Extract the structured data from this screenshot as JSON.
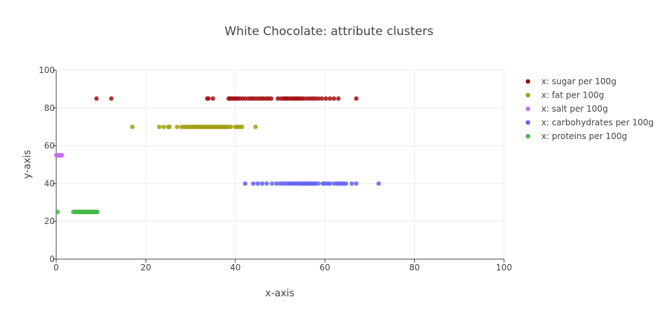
{
  "chart_data": {
    "type": "scatter",
    "title": "White Chocolate: attribute clusters",
    "xlabel": "x-axis",
    "ylabel": "y-axis",
    "xlim": [
      0,
      100
    ],
    "ylim": [
      0,
      100
    ],
    "x_ticks": [
      0,
      20,
      40,
      60,
      80,
      100
    ],
    "y_ticks": [
      0,
      20,
      40,
      60,
      80,
      100
    ],
    "grid": true,
    "legend_position": "top-right",
    "series": [
      {
        "name": "x: sugar per 100g",
        "color": "#a10f12",
        "y": 85,
        "x": [
          9,
          12.3,
          33.7,
          34,
          35,
          38.5,
          38.8,
          39.2,
          39.6,
          40.1,
          40.5,
          41,
          41.6,
          42.2,
          42.9,
          43.5,
          44,
          44.6,
          45.2,
          45.8,
          46.3,
          46.9,
          47.4,
          48,
          49.5,
          50.2,
          50.8,
          51.2,
          51.6,
          52.1,
          52.5,
          53,
          53.4,
          53.8,
          54.2,
          54.7,
          55.2,
          55.9,
          56.6,
          57.2,
          57.8,
          58.5,
          59.3,
          60.2,
          61.1,
          62,
          63,
          67
        ]
      },
      {
        "name": "x: fat per 100g",
        "color": "#a0a010",
        "y": 70,
        "x": [
          17,
          23,
          24,
          25,
          25.3,
          27,
          28,
          28.5,
          29,
          29.4,
          29.8,
          30.2,
          30.6,
          31,
          31.3,
          31.6,
          32,
          32.3,
          32.6,
          32.9,
          33.2,
          33.5,
          33.8,
          34.1,
          34.4,
          34.7,
          35,
          35.3,
          35.6,
          35.9,
          36.2,
          36.5,
          36.8,
          37.1,
          37.4,
          37.7,
          38,
          38.5,
          39,
          40,
          40.5,
          41,
          41.5,
          44.5
        ]
      },
      {
        "name": "x: salt per 100g",
        "color": "#c46ef0",
        "y": 55,
        "x": [
          0.05,
          0.1,
          0.15,
          0.2,
          0.25,
          0.3,
          0.35,
          0.4,
          0.5,
          0.6,
          0.7,
          0.8,
          0.9,
          1.0,
          1.1,
          1.3
        ]
      },
      {
        "name": "x: carbohydrates per 100g",
        "color": "#6161f0",
        "y": 40,
        "x": [
          42.2,
          44,
          45,
          46,
          47,
          48.2,
          49.2,
          50,
          50.6,
          51.2,
          51.8,
          52.3,
          52.8,
          53.3,
          53.8,
          54.3,
          54.7,
          55.1,
          55.5,
          55.9,
          56.3,
          56.7,
          57.1,
          57.5,
          57.9,
          58.5,
          59.5,
          60,
          60.6,
          61.1,
          62,
          62.7,
          63.2,
          63.7,
          64.2,
          64.7,
          66,
          67,
          72
        ]
      },
      {
        "name": "x: proteins per 100g",
        "color": "#46b846",
        "y": 25,
        "x": [
          0.3,
          3.8,
          4.1,
          4.4,
          4.7,
          5.0,
          5.2,
          5.4,
          5.6,
          5.8,
          6.0,
          6.2,
          6.4,
          6.6,
          6.8,
          7.0,
          7.2,
          7.4,
          7.6,
          7.8,
          8.0,
          8.2,
          8.4,
          8.6,
          8.8,
          9.0,
          9.2
        ]
      }
    ]
  }
}
